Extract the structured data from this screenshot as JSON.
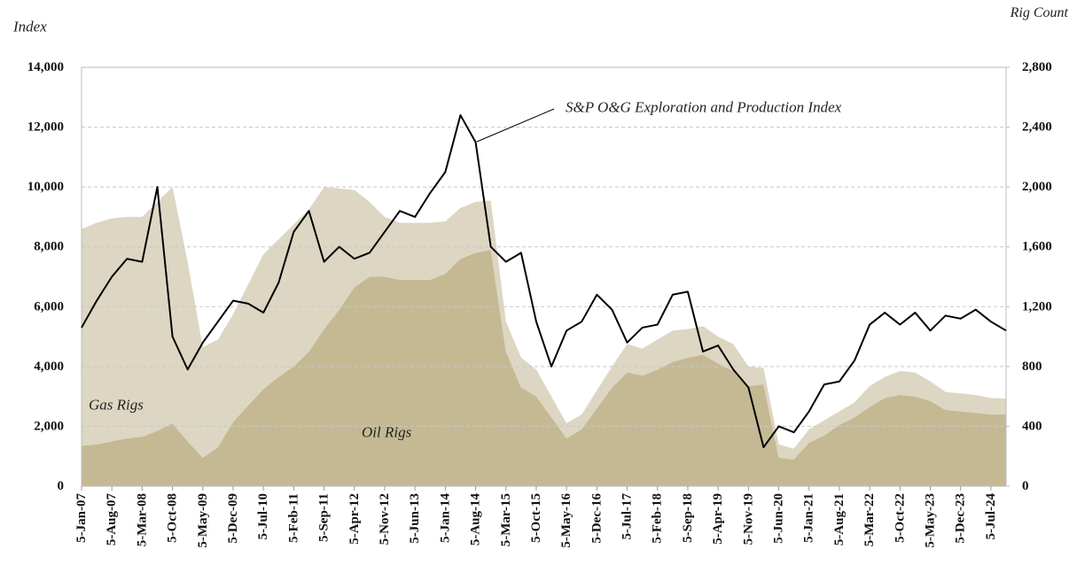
{
  "chart_data": {
    "type": "line",
    "ylabel": "Index",
    "y2label": "Rig Count",
    "categories": [
      "5-Jan-07",
      null,
      "5-Aug-07",
      null,
      "5-Mar-08",
      null,
      "5-Oct-08",
      null,
      "5-May-09",
      null,
      "5-Dec-09",
      null,
      "5-Jul-10",
      null,
      "5-Feb-11",
      null,
      "5-Sep-11",
      null,
      "5-Apr-12",
      null,
      "5-Nov-12",
      null,
      "5-Jun-13",
      null,
      "5-Jan-14",
      null,
      "5-Aug-14",
      null,
      "5-Mar-15",
      null,
      "5-Oct-15",
      null,
      "5-May-16",
      null,
      "5-Dec-16",
      null,
      "5-Jul-17",
      null,
      "5-Feb-18",
      null,
      "5-Sep-18",
      null,
      "5-Apr-19",
      null,
      "5-Nov-19",
      null,
      "5-Jun-20",
      null,
      "5-Jan-21",
      null,
      "5-Aug-21",
      null,
      "5-Mar-22",
      null,
      "5-Oct-22",
      null,
      "5-May-23",
      null,
      "5-Dec-23",
      null,
      "5-Jul-24",
      null
    ],
    "ylim": [
      0,
      14000
    ],
    "yticks": [
      0,
      {
        "value": 2000,
        "label": "2,000"
      },
      {
        "value": 4000,
        "label": "4,000"
      },
      {
        "value": 6000,
        "label": "6,000"
      },
      {
        "value": 8000,
        "label": "8,000"
      },
      {
        "value": 10000,
        "label": "10,000"
      },
      {
        "value": 12000,
        "label": "12,000"
      },
      {
        "value": 14000,
        "label": "14,000"
      }
    ],
    "y2lim": [
      0,
      2800
    ],
    "y2ticks": [
      0,
      400,
      800,
      {
        "value": 1200,
        "label": "1,200"
      },
      {
        "value": 1600,
        "label": "1,600"
      },
      {
        "value": 2000,
        "label": "2,000"
      },
      {
        "value": 2400,
        "label": "2,400"
      },
      {
        "value": 2800,
        "label": "2,800"
      }
    ],
    "grid": true,
    "series": [
      {
        "name": "Oil Rigs",
        "type": "area",
        "axis": "y2",
        "stack": true,
        "color": "#c5b994",
        "values": [
          270,
          280,
          300,
          320,
          330,
          370,
          420,
          300,
          190,
          260,
          430,
          540,
          650,
          730,
          800,
          900,
          1050,
          1180,
          1330,
          1400,
          1400,
          1380,
          1380,
          1380,
          1420,
          1520,
          1560,
          1580,
          900,
          660,
          600,
          460,
          320,
          380,
          520,
          660,
          760,
          740,
          780,
          830,
          860,
          880,
          820,
          770,
          670,
          680,
          190,
          180,
          290,
          340,
          410,
          460,
          530,
          590,
          610,
          600,
          570,
          510,
          500,
          490,
          480,
          480
        ]
      },
      {
        "name": "Gas Rigs",
        "type": "area",
        "axis": "y2",
        "stack": true,
        "color": "#ddd6c2",
        "values": [
          1450,
          1480,
          1490,
          1480,
          1470,
          1530,
          1580,
          1200,
          740,
          720,
          720,
          810,
          900,
          920,
          950,
          950,
          950,
          810,
          650,
          500,
          400,
          380,
          380,
          380,
          350,
          340,
          340,
          330,
          200,
          200,
          180,
          140,
          100,
          100,
          120,
          140,
          190,
          180,
          200,
          210,
          190,
          190,
          180,
          180,
          130,
          110,
          90,
          70,
          90,
          100,
          90,
          100,
          140,
          140,
          160,
          160,
          130,
          120,
          120,
          120,
          110,
          105
        ]
      },
      {
        "name": "S&P O&G Exploration and Production Index",
        "type": "line",
        "axis": "y",
        "color": "#000000",
        "values": [
          5300,
          6200,
          7000,
          7600,
          7500,
          10000,
          5000,
          3900,
          4800,
          5500,
          6200,
          6100,
          5800,
          6800,
          8500,
          9200,
          7500,
          8000,
          7600,
          7800,
          8500,
          9200,
          9000,
          9800,
          10500,
          12400,
          11500,
          8000,
          7500,
          7800,
          5500,
          4000,
          5200,
          5500,
          6400,
          5900,
          4800,
          5300,
          5400,
          6400,
          6500,
          4500,
          4700,
          3900,
          3300,
          1300,
          2000,
          1800,
          2500,
          3400,
          3500,
          4200,
          5400,
          5800,
          5400,
          5800,
          5200,
          5700,
          5600,
          5900,
          5500,
          5200
        ]
      }
    ]
  }
}
